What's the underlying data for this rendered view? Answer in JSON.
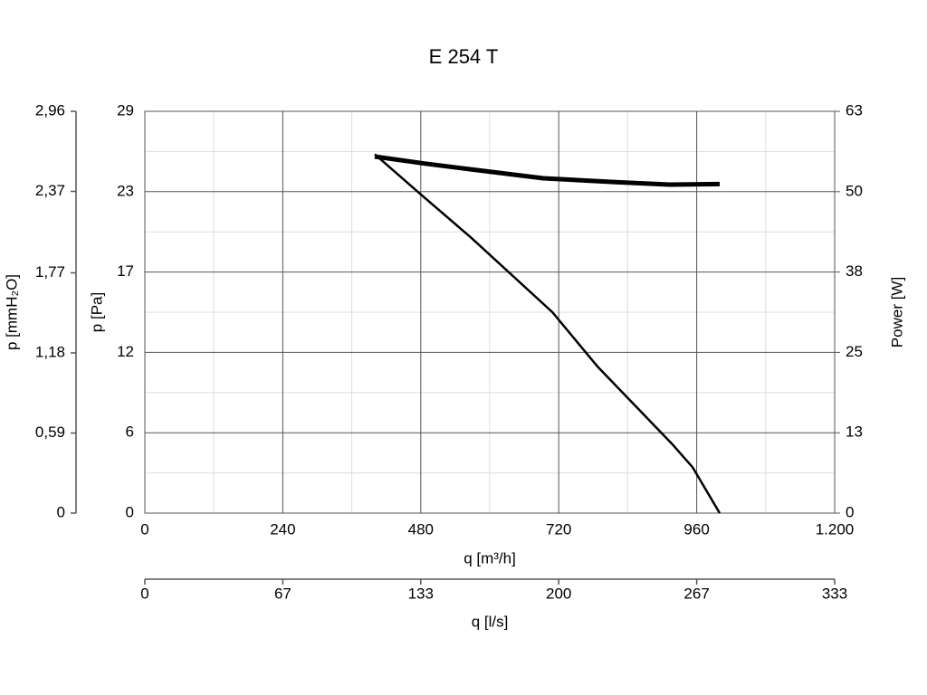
{
  "chart_data": {
    "type": "line",
    "title": "E 254 T",
    "x_label": "q [m³/h]",
    "y_label": "p [Pa]",
    "y2_label": "Power [W]",
    "y3_label": "p [mmH₂O]",
    "x2_label": "q [l/s]",
    "xlim": [
      0,
      1200
    ],
    "xticks": [
      0,
      240,
      480,
      720,
      960,
      {
        "value": 1200,
        "label": "1.200"
      }
    ],
    "ylim": [
      0,
      29
    ],
    "yticks": [
      0,
      {
        "value": 5.8,
        "label": "6"
      },
      {
        "value": 11.6,
        "label": "12"
      },
      {
        "value": 17.4,
        "label": "17"
      },
      {
        "value": 23.2,
        "label": "23"
      },
      29
    ],
    "y2lim": [
      0,
      63
    ],
    "y2ticks": [
      0,
      {
        "value": 12.6,
        "label": "13"
      },
      {
        "value": 25.2,
        "label": "25"
      },
      {
        "value": 37.8,
        "label": "38"
      },
      {
        "value": 50.4,
        "label": "50"
      },
      63
    ],
    "y3lim": [
      0,
      2.96
    ],
    "y3ticks": [
      0,
      {
        "value": 0.59,
        "label": "0,59"
      },
      {
        "value": 1.18,
        "label": "1,18"
      },
      {
        "value": 1.77,
        "label": "1,77"
      },
      {
        "value": 2.37,
        "label": "2,37"
      },
      {
        "value": 2.96,
        "label": "2,96"
      }
    ],
    "x2lim": [
      0,
      333.33
    ],
    "x2ticks": [
      0,
      {
        "value": 66.67,
        "label": "67"
      },
      {
        "value": 133.33,
        "label": "133"
      },
      200,
      {
        "value": 266.67,
        "label": "267"
      },
      {
        "value": 333.33,
        "label": "333"
      }
    ],
    "grid": true,
    "series": [
      {
        "color": "#000000",
        "x": [
          400,
          480,
          567,
          709,
          787,
          917,
          953,
          1000
        ],
        "values": [
          25.9,
          23.0,
          19.9,
          14.5,
          10.6,
          5.0,
          3.3,
          0
        ]
      },
      {
        "color": "#000000",
        "axis": "y2",
        "x": [
          400,
          488,
          567,
          693,
          819,
          913,
          1000
        ],
        "values": [
          55.9,
          54.8,
          53.9,
          52.5,
          51.9,
          51.5,
          51.6
        ]
      }
    ]
  }
}
